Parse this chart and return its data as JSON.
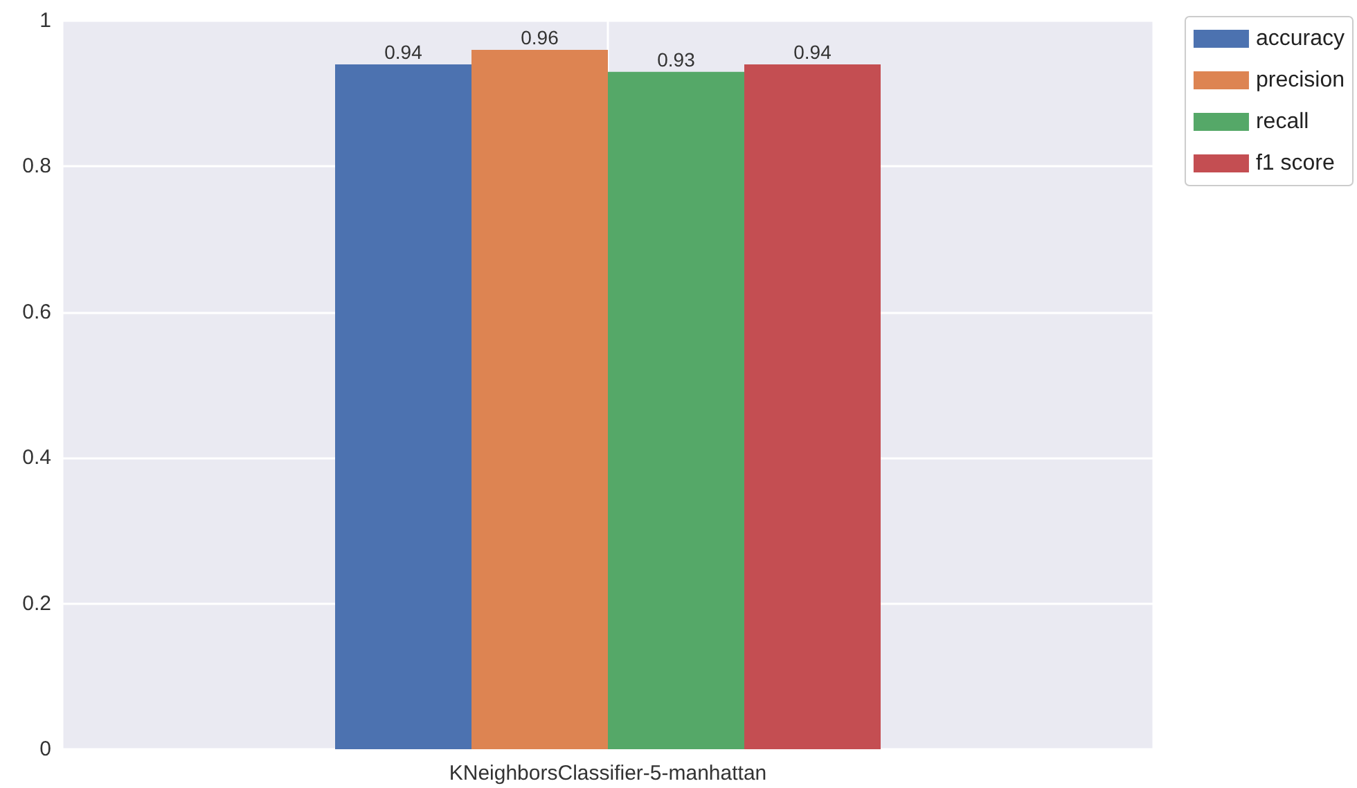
{
  "chart_data": {
    "type": "bar",
    "categories": [
      "KNeighborsClassifier-5-manhattan"
    ],
    "series": [
      {
        "name": "accuracy",
        "color": "#4c72b0",
        "values": [
          0.94
        ]
      },
      {
        "name": "precision",
        "color": "#dd8452",
        "values": [
          0.96
        ]
      },
      {
        "name": "recall",
        "color": "#55a868",
        "values": [
          0.93
        ]
      },
      {
        "name": "f1 score",
        "color": "#c44e52",
        "values": [
          0.94
        ]
      }
    ],
    "ylim": [
      0,
      1
    ],
    "yticks": [
      0,
      0.2,
      0.4,
      0.6,
      0.8,
      1
    ],
    "grid": true,
    "legend": "top right",
    "data_labels": true
  }
}
